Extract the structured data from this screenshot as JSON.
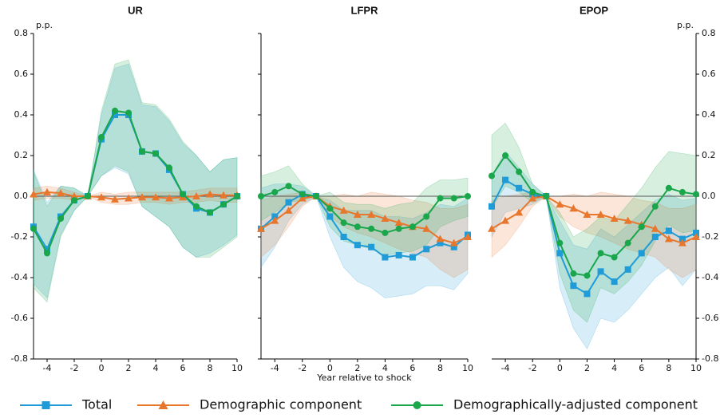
{
  "chart_data": [
    {
      "type": "line",
      "title": "UR",
      "ylabel": "p.p.",
      "yaxis_side": "left",
      "ytick_labels": true,
      "x": [
        -5,
        -4,
        -3,
        -2,
        -1,
        0,
        1,
        2,
        3,
        4,
        5,
        6,
        7,
        8,
        9,
        10
      ],
      "xlim": [
        -5,
        10
      ],
      "xticks": [
        -4,
        -2,
        0,
        2,
        4,
        6,
        8,
        10
      ],
      "ylim": [
        -0.8,
        0.8
      ],
      "yticks": [
        -0.8,
        -0.6,
        -0.4,
        -0.2,
        {
          "value": 0,
          "label": "0.0"
        },
        0.2,
        0.4,
        0.6,
        0.8
      ],
      "series": [
        {
          "name": "Total",
          "color": "#1f9bd7",
          "marker": "square",
          "values": [
            -0.15,
            -0.26,
            -0.1,
            -0.02,
            0,
            0.28,
            0.4,
            0.4,
            0.22,
            0.21,
            0.13,
            0.01,
            -0.06,
            -0.08,
            -0.04,
            0.0
          ],
          "lower": [
            -0.43,
            -0.5,
            -0.19,
            -0.07,
            0,
            0.1,
            0.14,
            0.11,
            -0.05,
            -0.1,
            -0.15,
            -0.25,
            -0.3,
            -0.28,
            -0.24,
            -0.19
          ],
          "upper": [
            0.13,
            -0.03,
            0.05,
            0.04,
            0,
            0.4,
            0.63,
            0.65,
            0.45,
            0.44,
            0.37,
            0.26,
            0.2,
            0.12,
            0.18,
            0.19
          ]
        },
        {
          "name": "Demographic component",
          "color": "#e8772e",
          "marker": "triangle",
          "values": [
            0.01,
            0.02,
            0.015,
            0.0,
            0,
            -0.005,
            -0.015,
            -0.01,
            -0.005,
            -0.005,
            -0.01,
            -0.005,
            0.0,
            0.01,
            0.005,
            0.005
          ],
          "lower": [
            -0.02,
            -0.01,
            -0.01,
            -0.02,
            0,
            -0.03,
            -0.04,
            -0.04,
            -0.03,
            -0.03,
            -0.04,
            -0.03,
            -0.03,
            -0.02,
            -0.03,
            -0.03
          ],
          "upper": [
            0.04,
            0.05,
            0.04,
            0.02,
            0,
            0.02,
            0.01,
            0.02,
            0.02,
            0.02,
            0.02,
            0.02,
            0.03,
            0.04,
            0.04,
            0.04
          ]
        },
        {
          "name": "Demographically-adjusted component",
          "color": "#1aa64a",
          "marker": "circle",
          "values": [
            -0.16,
            -0.28,
            -0.11,
            -0.02,
            0,
            0.29,
            0.42,
            0.41,
            0.22,
            0.21,
            0.14,
            0.01,
            -0.05,
            -0.08,
            -0.04,
            0.0
          ],
          "lower": [
            -0.45,
            -0.52,
            -0.2,
            -0.07,
            0,
            0.1,
            0.15,
            0.12,
            -0.05,
            -0.1,
            -0.15,
            -0.25,
            -0.3,
            -0.3,
            -0.25,
            -0.2
          ],
          "upper": [
            0.12,
            -0.05,
            0.05,
            0.04,
            0,
            0.42,
            0.65,
            0.67,
            0.46,
            0.45,
            0.38,
            0.27,
            0.2,
            0.12,
            0.18,
            0.19
          ]
        }
      ]
    },
    {
      "type": "line",
      "title": "LFPR",
      "xlabel": "Year relative to shock",
      "yaxis_side": "left",
      "ytick_labels": false,
      "x": [
        -5,
        -4,
        -3,
        -2,
        -1,
        0,
        1,
        2,
        3,
        4,
        5,
        6,
        7,
        8,
        9,
        10
      ],
      "xlim": [
        -5,
        10
      ],
      "xticks": [
        -4,
        -2,
        0,
        2,
        4,
        6,
        8,
        10
      ],
      "ylim": [
        -0.8,
        0.8
      ],
      "yticks": [
        -0.8,
        -0.6,
        -0.4,
        -0.2,
        0,
        0.2,
        0.4,
        0.6,
        0.8
      ],
      "series": [
        {
          "name": "Total",
          "color": "#1f9bd7",
          "marker": "square",
          "values": [
            -0.16,
            -0.1,
            -0.03,
            0.01,
            0,
            -0.1,
            -0.2,
            -0.24,
            -0.25,
            -0.3,
            -0.29,
            -0.3,
            -0.26,
            -0.23,
            -0.25,
            -0.19
          ],
          "lower": [
            -0.35,
            -0.25,
            -0.12,
            -0.04,
            0,
            -0.2,
            -0.35,
            -0.42,
            -0.45,
            -0.5,
            -0.49,
            -0.48,
            -0.44,
            -0.44,
            -0.46,
            -0.38
          ],
          "upper": [
            0.04,
            0.06,
            0.06,
            0.05,
            0,
            -0.02,
            -0.07,
            -0.07,
            -0.07,
            -0.1,
            -0.1,
            -0.11,
            -0.08,
            -0.04,
            -0.05,
            -0.01
          ]
        },
        {
          "name": "Demographic component",
          "color": "#e8772e",
          "marker": "triangle",
          "values": [
            -0.16,
            -0.12,
            -0.07,
            -0.01,
            0,
            -0.05,
            -0.07,
            -0.09,
            -0.09,
            -0.11,
            -0.13,
            -0.15,
            -0.16,
            -0.21,
            -0.23,
            -0.2
          ],
          "lower": [
            -0.3,
            -0.24,
            -0.15,
            -0.05,
            0,
            -0.1,
            -0.15,
            -0.18,
            -0.2,
            -0.23,
            -0.26,
            -0.28,
            -0.3,
            -0.36,
            -0.4,
            -0.36
          ],
          "upper": [
            -0.02,
            0.0,
            0.01,
            0.02,
            0,
            0.0,
            0.01,
            0.0,
            0.02,
            0.01,
            0.0,
            -0.02,
            -0.03,
            -0.06,
            -0.06,
            -0.04
          ]
        },
        {
          "name": "Demographically-adjusted component",
          "color": "#1aa64a",
          "marker": "circle",
          "values": [
            0.0,
            0.02,
            0.05,
            0.01,
            0,
            -0.06,
            -0.13,
            -0.15,
            -0.16,
            -0.18,
            -0.16,
            -0.15,
            -0.1,
            -0.01,
            -0.01,
            0.0
          ],
          "lower": [
            -0.12,
            -0.08,
            -0.03,
            -0.02,
            0,
            -0.15,
            -0.22,
            -0.24,
            -0.26,
            -0.29,
            -0.28,
            -0.27,
            -0.24,
            -0.15,
            -0.12,
            -0.1
          ],
          "upper": [
            0.1,
            0.12,
            0.15,
            0.06,
            0,
            0.02,
            -0.03,
            -0.04,
            -0.04,
            -0.06,
            -0.04,
            -0.03,
            0.04,
            0.08,
            0.08,
            0.09
          ]
        }
      ]
    },
    {
      "type": "line",
      "title": "EPOP",
      "ylabel": "p.p.",
      "yaxis_side": "right",
      "ytick_labels": true,
      "x": [
        -5,
        -4,
        -3,
        -2,
        -1,
        0,
        1,
        2,
        3,
        4,
        5,
        6,
        7,
        8,
        9,
        10
      ],
      "xlim": [
        -5,
        10
      ],
      "xticks": [
        -4,
        -2,
        0,
        2,
        4,
        6,
        8,
        10
      ],
      "ylim": [
        -0.8,
        0.8
      ],
      "yticks": [
        -0.8,
        -0.6,
        -0.4,
        -0.2,
        {
          "value": 0,
          "label": "0.0"
        },
        0.2,
        0.4,
        0.6,
        0.8
      ],
      "series": [
        {
          "name": "Total",
          "color": "#1f9bd7",
          "marker": "square",
          "values": [
            -0.05,
            0.08,
            0.04,
            0.01,
            0,
            -0.28,
            -0.44,
            -0.48,
            -0.37,
            -0.42,
            -0.36,
            -0.28,
            -0.2,
            -0.17,
            -0.21,
            -0.18
          ],
          "lower": [
            -0.2,
            -0.08,
            -0.06,
            -0.04,
            0,
            -0.45,
            -0.65,
            -0.75,
            -0.6,
            -0.62,
            -0.56,
            -0.48,
            -0.4,
            -0.35,
            -0.44,
            -0.36
          ],
          "upper": [
            0.1,
            0.22,
            0.14,
            0.06,
            0,
            -0.12,
            -0.24,
            -0.26,
            -0.16,
            -0.2,
            -0.14,
            -0.08,
            -0.02,
            0.01,
            -0.02,
            -0.01
          ]
        },
        {
          "name": "Demographic component",
          "color": "#e8772e",
          "marker": "triangle",
          "values": [
            -0.16,
            -0.12,
            -0.08,
            -0.01,
            0,
            -0.04,
            -0.06,
            -0.09,
            -0.09,
            -0.11,
            -0.12,
            -0.14,
            -0.16,
            -0.21,
            -0.23,
            -0.2
          ],
          "lower": [
            -0.3,
            -0.24,
            -0.15,
            -0.05,
            0,
            -0.1,
            -0.15,
            -0.18,
            -0.2,
            -0.23,
            -0.26,
            -0.28,
            -0.3,
            -0.36,
            -0.4,
            -0.36
          ],
          "upper": [
            -0.02,
            0.0,
            0.01,
            0.02,
            0,
            0.0,
            0.01,
            0.0,
            0.02,
            0.01,
            0.0,
            -0.02,
            -0.03,
            -0.06,
            -0.06,
            -0.04
          ]
        },
        {
          "name": "Demographically-adjusted component",
          "color": "#1aa64a",
          "marker": "circle",
          "values": [
            0.1,
            0.2,
            0.12,
            0.02,
            0,
            -0.23,
            -0.38,
            -0.39,
            -0.28,
            -0.3,
            -0.23,
            -0.15,
            -0.05,
            0.04,
            0.02,
            0.01
          ],
          "lower": [
            -0.06,
            0.05,
            0.02,
            -0.03,
            0,
            -0.38,
            -0.56,
            -0.62,
            -0.45,
            -0.48,
            -0.42,
            -0.34,
            -0.22,
            -0.14,
            -0.18,
            -0.17
          ],
          "upper": [
            0.3,
            0.36,
            0.24,
            0.06,
            0,
            -0.08,
            -0.2,
            -0.16,
            -0.1,
            -0.12,
            -0.04,
            0.04,
            0.14,
            0.22,
            0.21,
            0.2
          ]
        }
      ]
    }
  ]
}
